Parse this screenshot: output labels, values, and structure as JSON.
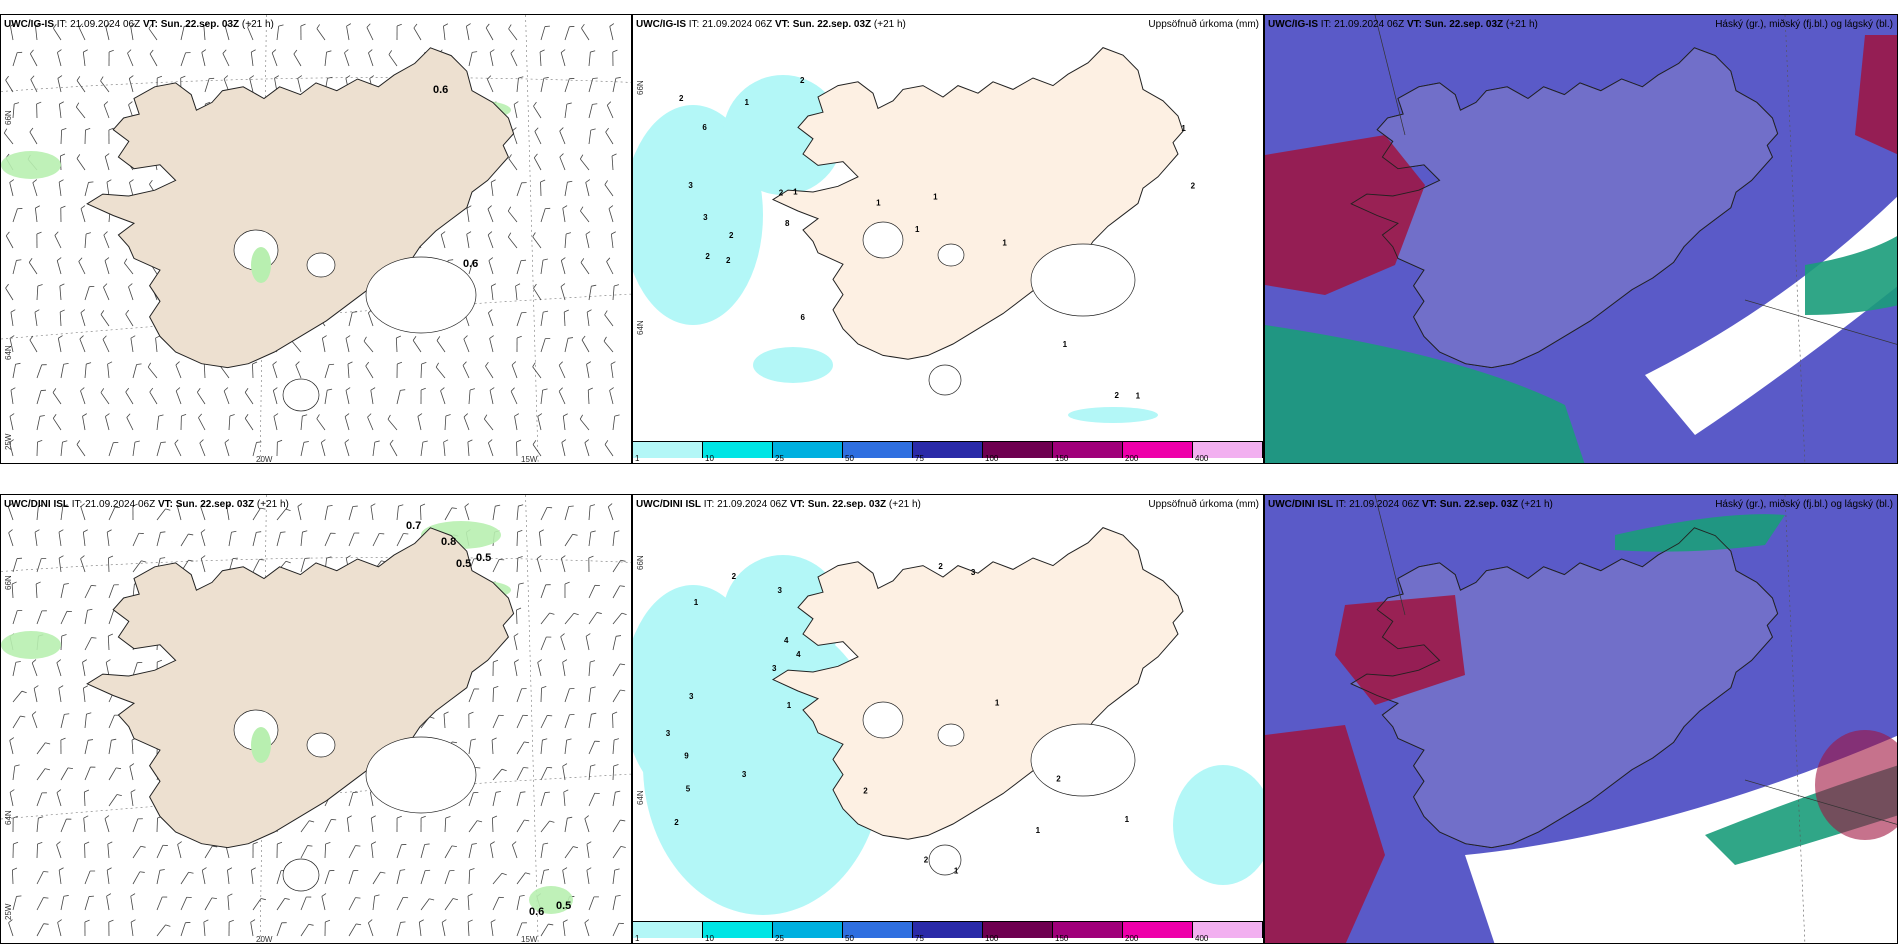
{
  "common": {
    "it_label": "IT: 21.09.2024 06Z",
    "vt_label": "VT: Sun. 22.sep. 03Z",
    "lead": "(+21 h)"
  },
  "rows": [
    {
      "model": "UWC/IG-IS",
      "wind_labels": [
        "0.6",
        "0.6"
      ],
      "precip_title": "Uppsöfnuð úrkoma (mm)",
      "cloud_title": "Háský (gr.), miðský (fj.bl.) og lágský (bl.)",
      "precip_numbers": [
        "2",
        "3",
        "2",
        "8",
        "6",
        "6",
        "2",
        "3",
        "2",
        "2",
        "1",
        "1",
        "2",
        "2",
        "1",
        "1",
        "1",
        "2",
        "1",
        "1",
        "1",
        "1"
      ]
    },
    {
      "model": "UWC/DINI ISL",
      "wind_labels": [
        "0.7",
        "0.8",
        "0.5",
        "0.5",
        "0.6",
        "0.5"
      ],
      "precip_title": "Uppsöfnuð úrkoma (mm)",
      "cloud_title": "Háský (gr.), miðský (fj.bl.) og lágský (bl.)",
      "precip_numbers": [
        "2",
        "3",
        "1",
        "4",
        "3",
        "3",
        "9",
        "5",
        "4",
        "3",
        "3",
        "2",
        "2",
        "1",
        "1",
        "2",
        "1",
        "1",
        "2",
        "2",
        "1",
        "3"
      ]
    }
  ],
  "axis": {
    "lat_labels": [
      "66N",
      "64N",
      "25W"
    ],
    "lon_labels": [
      "20W",
      "15W"
    ]
  },
  "colorbar": {
    "ticks": [
      "1",
      "10",
      "25",
      "50",
      "75",
      "100",
      "150",
      "200",
      "400"
    ],
    "colors": [
      "#b3f7f7",
      "#00e5e5",
      "#00b0e0",
      "#2f6fe0",
      "#2a2aa8",
      "#6e0050",
      "#a0007a",
      "#ee00aa",
      "#f2b0f0"
    ]
  },
  "colors": {
    "land": "#ede0d0",
    "land_precip": "#fdf0e3",
    "precip_light": "#b3f7f7",
    "wind_green": "#b8efb0",
    "cloud_mid": "#5a5ac8",
    "cloud_high": "#a01440",
    "cloud_low": "#1a9c7a"
  }
}
